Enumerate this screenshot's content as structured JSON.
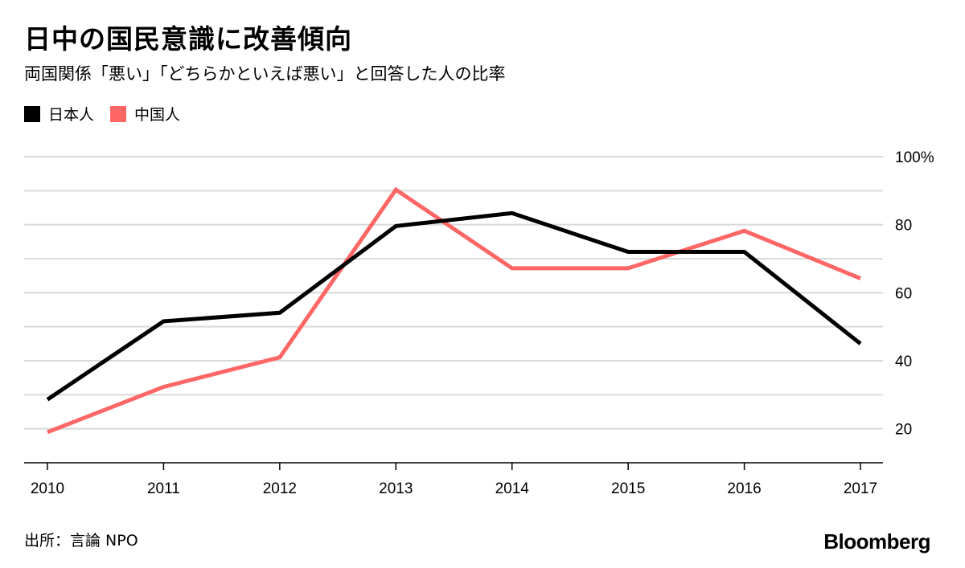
{
  "header": {
    "title": "日中の国民意識に改善傾向",
    "subtitle": "両国関係「悪い」「どちらかといえば悪い」と回答した人の比率"
  },
  "footer": {
    "source": "出所：言論 NPO",
    "brand": "Bloomberg"
  },
  "colors": {
    "japanese": "#000000",
    "chinese": "#ff6666",
    "grid": "#d9d9d9",
    "axis": "#000000"
  },
  "chart_data": {
    "type": "line",
    "title": "日中の国民意識に改善傾向",
    "subtitle": "両国関係「悪い」「どちらかといえば悪い」と回答した人の比率",
    "x": [
      "2010",
      "2011",
      "2012",
      "2013",
      "2014",
      "2015",
      "2016",
      "2017"
    ],
    "series": [
      {
        "name": "日本人",
        "color": "#000000",
        "values": [
          28.6,
          51.6,
          54.1,
          79.6,
          83.4,
          72.0,
          72.0,
          45.0
        ]
      },
      {
        "name": "中国人",
        "color": "#ff6666",
        "values": [
          19.0,
          32.3,
          41.0,
          90.3,
          67.2,
          67.2,
          78.2,
          64.2
        ]
      }
    ],
    "yticks": [
      {
        "value": 20,
        "label": "20"
      },
      {
        "value": 40,
        "label": "40"
      },
      {
        "value": 60,
        "label": "60"
      },
      {
        "value": 80,
        "label": "80"
      },
      {
        "value": 100,
        "label": "100%"
      }
    ],
    "ylim": [
      10,
      100
    ],
    "grid_step": 10,
    "grid": true,
    "legend_position": "top-left",
    "y_axis_side": "right"
  }
}
